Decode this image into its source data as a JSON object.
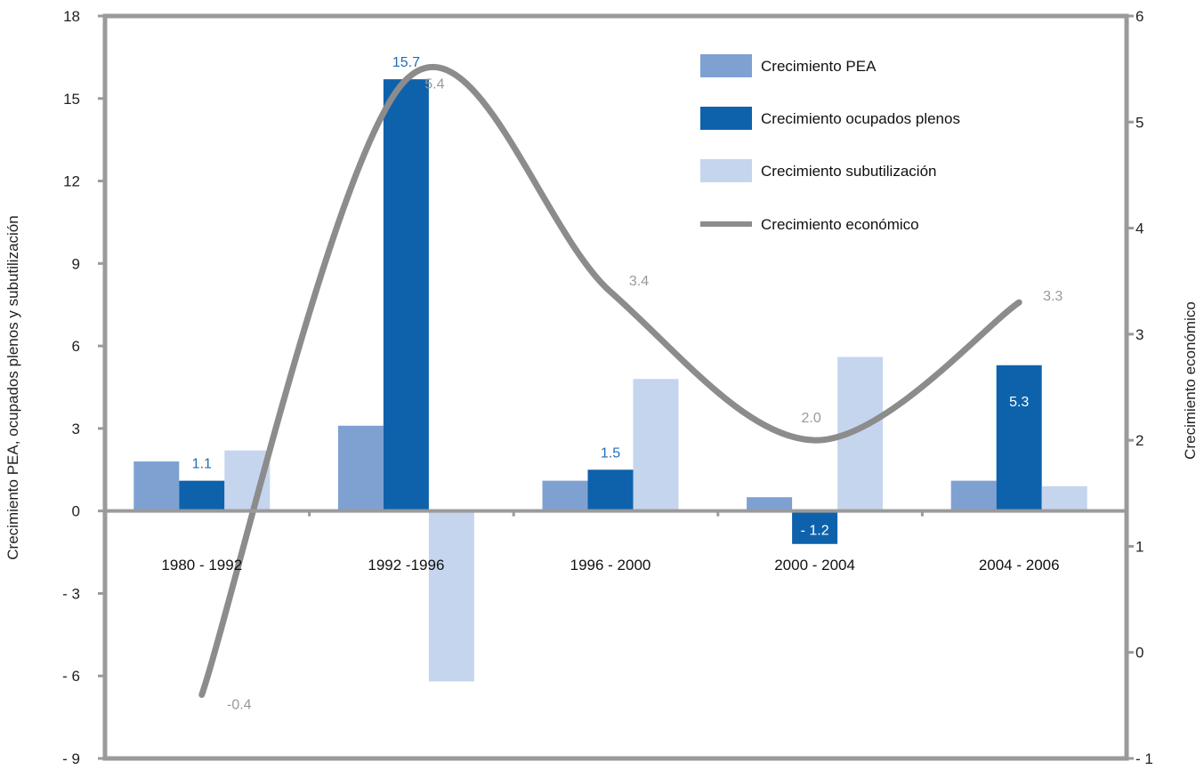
{
  "chart_data": {
    "type": "bar",
    "categories": [
      "1980 - 1992",
      "1992 -1996",
      "1996 - 2000",
      "2000 - 2004",
      "2004 - 2006"
    ],
    "series": [
      {
        "name": "Crecimiento PEA",
        "color": "#7ea1d2",
        "values": [
          1.8,
          3.1,
          1.1,
          0.5,
          1.1
        ]
      },
      {
        "name": "Crecimiento ocupados plenos",
        "color": "#0e62ab",
        "values": [
          1.1,
          15.7,
          1.5,
          -1.2,
          5.3
        ],
        "labels": [
          "1.1",
          "15.7",
          "1.5",
          "- 1.2",
          "5.3"
        ]
      },
      {
        "name": "Crecimiento subutilización",
        "color": "#c5d5ee",
        "values": [
          2.2,
          -6.2,
          4.8,
          5.6,
          0.9
        ]
      }
    ],
    "line_series": {
      "name": "Crecimiento económico",
      "color": "#8c8c8c",
      "axis": "right",
      "values": [
        -0.4,
        5.4,
        3.4,
        2.0,
        3.3
      ],
      "labels": [
        "-0.4",
        "5.4",
        "3.4",
        "2.0",
        "3.3"
      ]
    },
    "ylabel": "Crecimiento PEA, ocupados plenos y subutilización",
    "ylabel_right": "Crecimiento económico",
    "ylim": [
      -9,
      18
    ],
    "ylim_right": [
      -1,
      6
    ],
    "yticks": [
      "18",
      "15",
      "12",
      "9",
      "6",
      "3",
      "0",
      "- 3",
      "- 6",
      "- 9"
    ],
    "yticks_right": [
      "6",
      "5",
      "4",
      "3",
      "2",
      "1",
      "0",
      "- 1"
    ],
    "grid": false,
    "legend_position": "top-right"
  }
}
